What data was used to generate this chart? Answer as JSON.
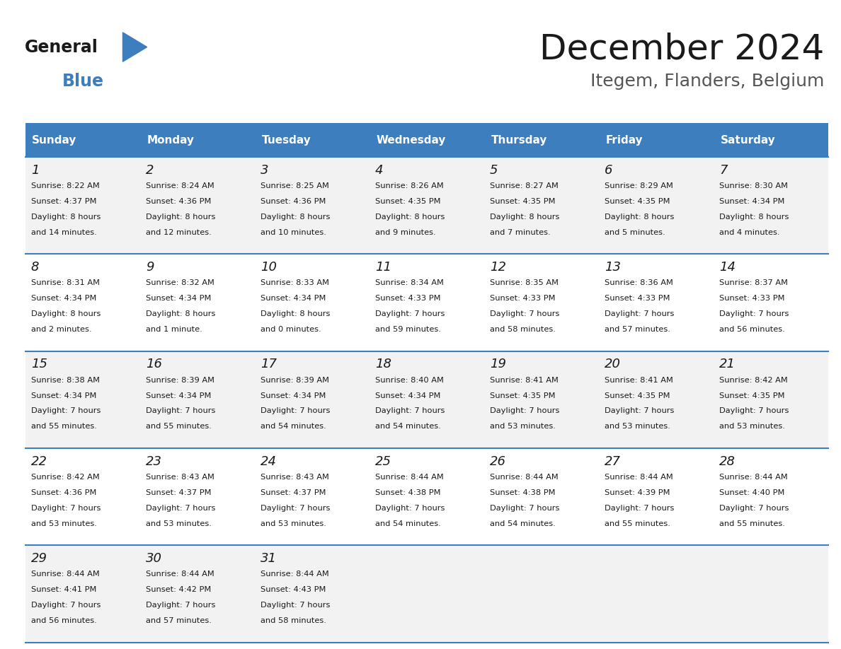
{
  "title": "December 2024",
  "subtitle": "Itegem, Flanders, Belgium",
  "header_color": "#3d7ebf",
  "header_text_color": "#ffffff",
  "cell_bg_color": "#f2f2f2",
  "cell_bg_alt_color": "#ffffff",
  "border_color": "#3d7ebf",
  "day_names": [
    "Sunday",
    "Monday",
    "Tuesday",
    "Wednesday",
    "Thursday",
    "Friday",
    "Saturday"
  ],
  "weeks": [
    [
      {
        "day": 1,
        "sunrise": "8:22 AM",
        "sunset": "4:37 PM",
        "daylight": "8 hours and 14 minutes."
      },
      {
        "day": 2,
        "sunrise": "8:24 AM",
        "sunset": "4:36 PM",
        "daylight": "8 hours and 12 minutes."
      },
      {
        "day": 3,
        "sunrise": "8:25 AM",
        "sunset": "4:36 PM",
        "daylight": "8 hours and 10 minutes."
      },
      {
        "day": 4,
        "sunrise": "8:26 AM",
        "sunset": "4:35 PM",
        "daylight": "8 hours and 9 minutes."
      },
      {
        "day": 5,
        "sunrise": "8:27 AM",
        "sunset": "4:35 PM",
        "daylight": "8 hours and 7 minutes."
      },
      {
        "day": 6,
        "sunrise": "8:29 AM",
        "sunset": "4:35 PM",
        "daylight": "8 hours and 5 minutes."
      },
      {
        "day": 7,
        "sunrise": "8:30 AM",
        "sunset": "4:34 PM",
        "daylight": "8 hours and 4 minutes."
      }
    ],
    [
      {
        "day": 8,
        "sunrise": "8:31 AM",
        "sunset": "4:34 PM",
        "daylight": "8 hours and 2 minutes."
      },
      {
        "day": 9,
        "sunrise": "8:32 AM",
        "sunset": "4:34 PM",
        "daylight": "8 hours and 1 minute."
      },
      {
        "day": 10,
        "sunrise": "8:33 AM",
        "sunset": "4:34 PM",
        "daylight": "8 hours and 0 minutes."
      },
      {
        "day": 11,
        "sunrise": "8:34 AM",
        "sunset": "4:33 PM",
        "daylight": "7 hours and 59 minutes."
      },
      {
        "day": 12,
        "sunrise": "8:35 AM",
        "sunset": "4:33 PM",
        "daylight": "7 hours and 58 minutes."
      },
      {
        "day": 13,
        "sunrise": "8:36 AM",
        "sunset": "4:33 PM",
        "daylight": "7 hours and 57 minutes."
      },
      {
        "day": 14,
        "sunrise": "8:37 AM",
        "sunset": "4:33 PM",
        "daylight": "7 hours and 56 minutes."
      }
    ],
    [
      {
        "day": 15,
        "sunrise": "8:38 AM",
        "sunset": "4:34 PM",
        "daylight": "7 hours and 55 minutes."
      },
      {
        "day": 16,
        "sunrise": "8:39 AM",
        "sunset": "4:34 PM",
        "daylight": "7 hours and 55 minutes."
      },
      {
        "day": 17,
        "sunrise": "8:39 AM",
        "sunset": "4:34 PM",
        "daylight": "7 hours and 54 minutes."
      },
      {
        "day": 18,
        "sunrise": "8:40 AM",
        "sunset": "4:34 PM",
        "daylight": "7 hours and 54 minutes."
      },
      {
        "day": 19,
        "sunrise": "8:41 AM",
        "sunset": "4:35 PM",
        "daylight": "7 hours and 53 minutes."
      },
      {
        "day": 20,
        "sunrise": "8:41 AM",
        "sunset": "4:35 PM",
        "daylight": "7 hours and 53 minutes."
      },
      {
        "day": 21,
        "sunrise": "8:42 AM",
        "sunset": "4:35 PM",
        "daylight": "7 hours and 53 minutes."
      }
    ],
    [
      {
        "day": 22,
        "sunrise": "8:42 AM",
        "sunset": "4:36 PM",
        "daylight": "7 hours and 53 minutes."
      },
      {
        "day": 23,
        "sunrise": "8:43 AM",
        "sunset": "4:37 PM",
        "daylight": "7 hours and 53 minutes."
      },
      {
        "day": 24,
        "sunrise": "8:43 AM",
        "sunset": "4:37 PM",
        "daylight": "7 hours and 53 minutes."
      },
      {
        "day": 25,
        "sunrise": "8:44 AM",
        "sunset": "4:38 PM",
        "daylight": "7 hours and 54 minutes."
      },
      {
        "day": 26,
        "sunrise": "8:44 AM",
        "sunset": "4:38 PM",
        "daylight": "7 hours and 54 minutes."
      },
      {
        "day": 27,
        "sunrise": "8:44 AM",
        "sunset": "4:39 PM",
        "daylight": "7 hours and 55 minutes."
      },
      {
        "day": 28,
        "sunrise": "8:44 AM",
        "sunset": "4:40 PM",
        "daylight": "7 hours and 55 minutes."
      }
    ],
    [
      {
        "day": 29,
        "sunrise": "8:44 AM",
        "sunset": "4:41 PM",
        "daylight": "7 hours and 56 minutes."
      },
      {
        "day": 30,
        "sunrise": "8:44 AM",
        "sunset": "4:42 PM",
        "daylight": "7 hours and 57 minutes."
      },
      {
        "day": 31,
        "sunrise": "8:44 AM",
        "sunset": "4:43 PM",
        "daylight": "7 hours and 58 minutes."
      },
      null,
      null,
      null,
      null
    ]
  ]
}
